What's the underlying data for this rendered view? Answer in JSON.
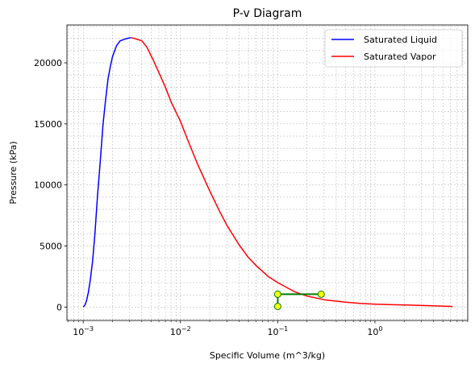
{
  "chart_data": {
    "type": "line",
    "title": "P-v Diagram",
    "xlabel": "Specific Volume (m^3/kg)",
    "ylabel": "Pressure (kPa)",
    "x_scale": "log",
    "xlim": [
      0.00068,
      9.0
    ],
    "ylim": [
      -1100,
      23100
    ],
    "grid": "major and minor, dashed",
    "legend_position": "upper right",
    "x_ticks": [
      {
        "value": 0.001,
        "base": "10",
        "exp": "−3"
      },
      {
        "value": 0.01,
        "base": "10",
        "exp": "−2"
      },
      {
        "value": 0.1,
        "base": "10",
        "exp": "−1"
      },
      {
        "value": 1,
        "base": "10",
        "exp": "0"
      }
    ],
    "y_ticks": [
      {
        "value": 0,
        "label": "0"
      },
      {
        "value": 5000,
        "label": "5000"
      },
      {
        "value": 10000,
        "label": "10000"
      },
      {
        "value": 15000,
        "label": "15000"
      },
      {
        "value": 20000,
        "label": "20000"
      }
    ],
    "series": [
      {
        "name": "Saturated Liquid",
        "color": "#0000ff",
        "points": [
          [
            0.001,
            0
          ],
          [
            0.00104,
            150
          ],
          [
            0.00108,
            500
          ],
          [
            0.00113,
            1200
          ],
          [
            0.00118,
            2200
          ],
          [
            0.00125,
            3800
          ],
          [
            0.00132,
            6000
          ],
          [
            0.0014,
            9000
          ],
          [
            0.0015,
            12000
          ],
          [
            0.0016,
            15000
          ],
          [
            0.0017,
            17000
          ],
          [
            0.0018,
            18700
          ],
          [
            0.0019,
            19700
          ],
          [
            0.002,
            20500
          ],
          [
            0.0022,
            21400
          ],
          [
            0.0024,
            21800
          ],
          [
            0.0027,
            21950
          ],
          [
            0.0031,
            22064
          ]
        ]
      },
      {
        "name": "Saturated Vapor",
        "color": "#ff0000",
        "points": [
          [
            0.0031,
            22064
          ],
          [
            0.0035,
            21950
          ],
          [
            0.004,
            21800
          ],
          [
            0.0045,
            21300
          ],
          [
            0.0052,
            20300
          ],
          [
            0.006,
            19200
          ],
          [
            0.007,
            18000
          ],
          [
            0.008,
            16800
          ],
          [
            0.01,
            15200
          ],
          [
            0.012,
            13600
          ],
          [
            0.015,
            11700
          ],
          [
            0.02,
            9500
          ],
          [
            0.025,
            7900
          ],
          [
            0.03,
            6700
          ],
          [
            0.04,
            5100
          ],
          [
            0.05,
            4050
          ],
          [
            0.06,
            3400
          ],
          [
            0.08,
            2500
          ],
          [
            0.1,
            2000
          ],
          [
            0.15,
            1250
          ],
          [
            0.2,
            900
          ],
          [
            0.3,
            600
          ],
          [
            0.5,
            400
          ],
          [
            0.7,
            300
          ],
          [
            1.0,
            240
          ],
          [
            2.0,
            170
          ],
          [
            4.0,
            100
          ],
          [
            6.3,
            50
          ]
        ]
      },
      {
        "name": "",
        "color": "#008000",
        "marker_fill": "#ffff00",
        "line_width": 2,
        "points": [
          [
            0.1,
            50
          ],
          [
            0.1,
            1050
          ],
          [
            0.28,
            1050
          ]
        ]
      }
    ],
    "legend": [
      {
        "label": "Saturated Liquid",
        "color": "#0000ff"
      },
      {
        "label": "Saturated Vapor",
        "color": "#ff0000"
      }
    ]
  }
}
